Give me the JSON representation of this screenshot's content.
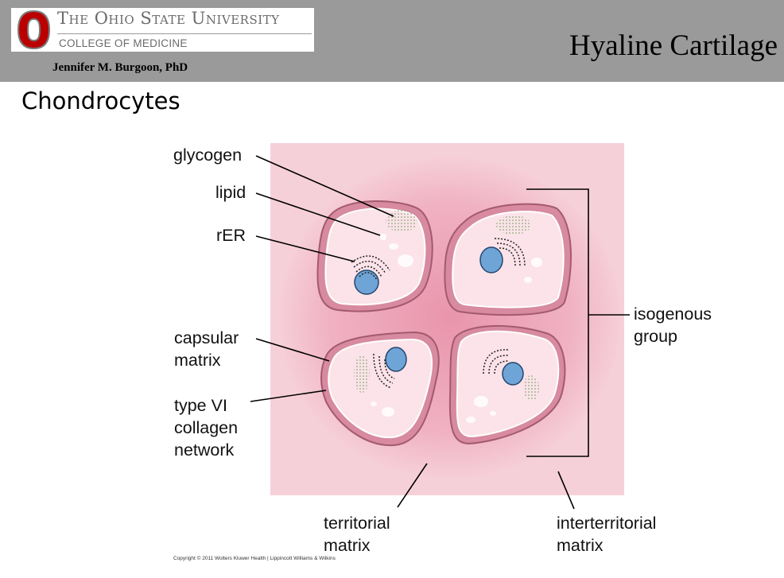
{
  "header": {
    "university": "The Ohio State University",
    "college": "COLLEGE OF MEDICINE",
    "author": "Jennifer M. Burgoon, PhD",
    "slide_title": "Hyaline Cartilage"
  },
  "subtitle": "Chondrocytes",
  "labels": {
    "glycogen": "glycogen",
    "lipid": "lipid",
    "rer": "rER",
    "capsular_matrix": [
      "capsular",
      "matrix"
    ],
    "type_vi_collagen": [
      "type VI",
      "collagen",
      "network"
    ],
    "isogenous_group": [
      "isogenous",
      "group"
    ],
    "territorial_matrix": [
      "territorial",
      "matrix"
    ],
    "interterritorial_matrix": [
      "interterritorial",
      "matrix"
    ]
  },
  "copyright": "Copyright © 2011 Wolters Kluwer Health | Lippincott Williams & Wilkins",
  "colors": {
    "header_bg": "#9a9a9a",
    "osu_scarlet": "#bb0000",
    "matrix_pink": "#f6d0d9",
    "territorial_pink": "#efaebf",
    "cell_fill": "#fbe3e9",
    "nucleus_blue": "#6fa4d6",
    "glycogen_green": "#6b9a55"
  },
  "icons": [
    "osu-block-o-logo"
  ]
}
